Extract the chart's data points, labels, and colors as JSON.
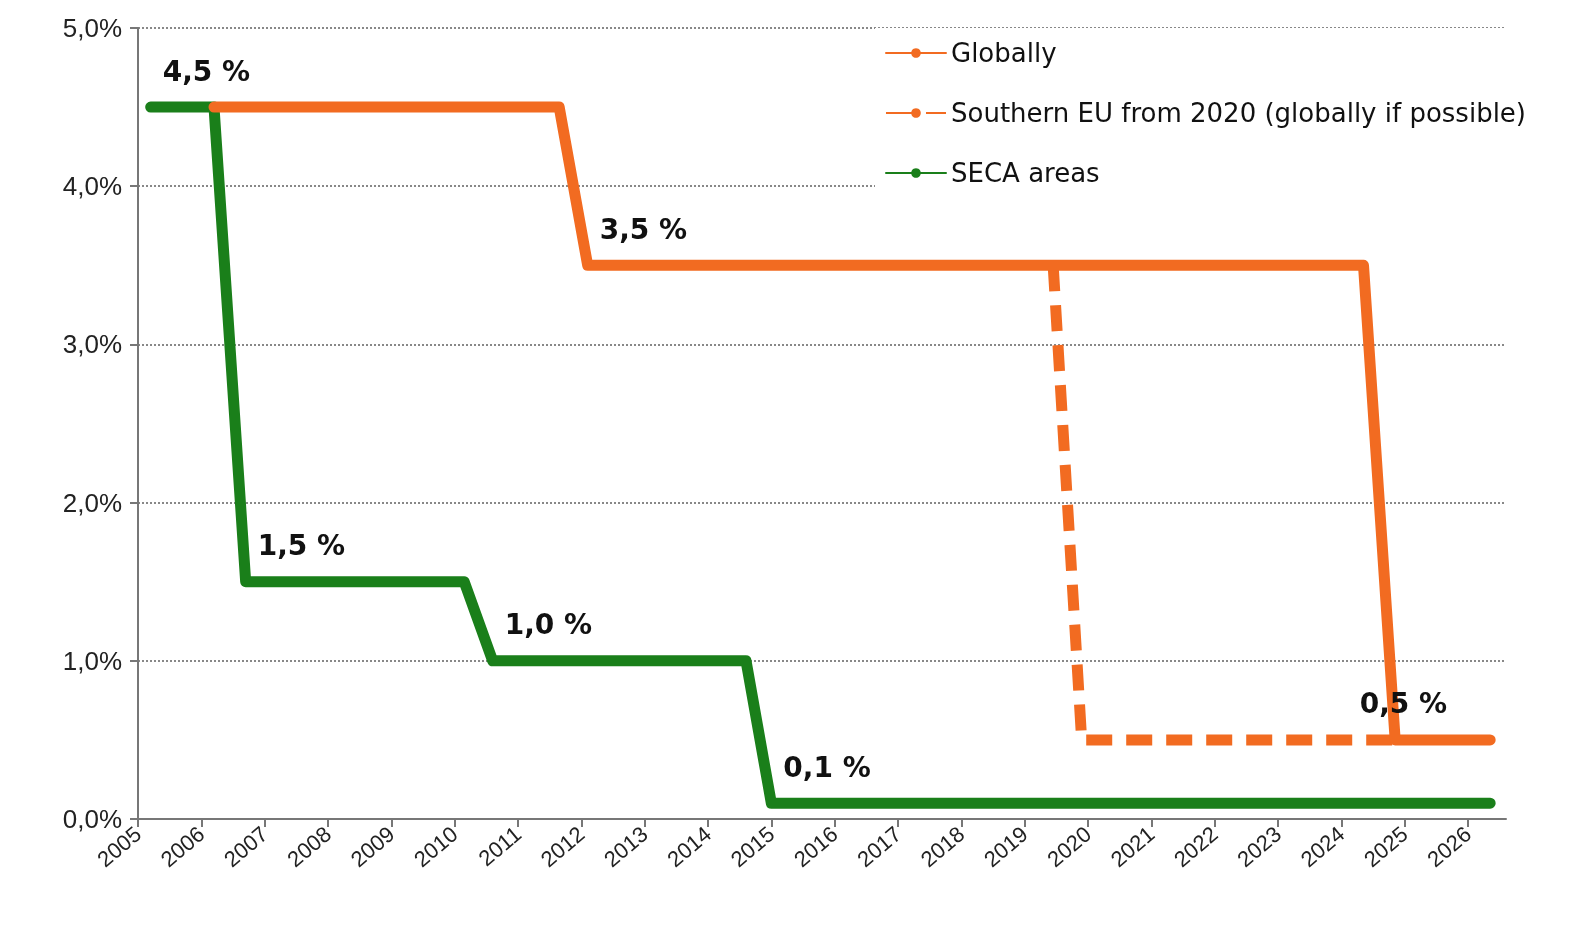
{
  "chart_data": {
    "type": "line",
    "xlim": [
      2005,
      2026.6
    ],
    "xticks": [
      2005,
      2006,
      2007,
      2008,
      2009,
      2010,
      2011,
      2012,
      2013,
      2014,
      2015,
      2016,
      2017,
      2018,
      2019,
      2020,
      2021,
      2022,
      2023,
      2024,
      2025,
      2026
    ],
    "ylim": [
      0,
      5
    ],
    "yticks": [
      {
        "value": 0,
        "label": "0,0%"
      },
      {
        "value": 1,
        "label": "1,0%"
      },
      {
        "value": 2,
        "label": "2,0%"
      },
      {
        "value": 3,
        "label": "3,0%"
      },
      {
        "value": 4,
        "label": "4,0%"
      },
      {
        "value": 5,
        "label": "5,0%"
      }
    ],
    "grid": "y",
    "legend": "top right",
    "marker": "none",
    "series": [
      {
        "name": "Globally",
        "color": "#f26b21",
        "line_style": "solid",
        "x": [
          2006.2,
          2011.65,
          2012.1,
          2024.35,
          2024.85,
          2026.35
        ],
        "values": [
          4.5,
          4.5,
          3.5,
          3.5,
          0.5,
          0.5
        ]
      },
      {
        "name": "Southern EU from 2020 (globally if possible)",
        "color": "#f26b21",
        "line_style": "dashed",
        "x": [
          2019.45,
          2019.9,
          2024.85
        ],
        "values": [
          3.5,
          0.5,
          0.5
        ]
      },
      {
        "name": "SECA areas",
        "color": "#1a7f1a",
        "line_style": "solid",
        "x": [
          2005.2,
          2006.2,
          2006.7,
          2010.15,
          2010.6,
          2014.6,
          2015.0,
          2026.35
        ],
        "values": [
          4.5,
          4.5,
          1.5,
          1.5,
          1.0,
          1.0,
          0.1,
          0.1
        ]
      }
    ],
    "annotations": [
      {
        "text": "4,5 %",
        "x": 2005.2,
        "y": 4.5
      },
      {
        "text": "3,5 %",
        "x": 2012.1,
        "y": 3.5
      },
      {
        "text": "1,5 %",
        "x": 2006.7,
        "y": 1.5
      },
      {
        "text": "1,0 %",
        "x": 2010.6,
        "y": 1.0
      },
      {
        "text": "0,1 %",
        "x": 2015.0,
        "y": 0.1
      },
      {
        "text": "0,5 %",
        "x": 2024.1,
        "y": 0.5
      }
    ]
  }
}
